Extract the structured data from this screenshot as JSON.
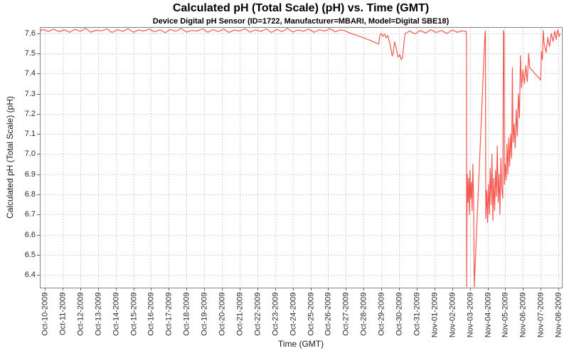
{
  "chart_data": {
    "type": "line",
    "title": "Calculated pH (Total Scale) (pH) vs. Time (GMT)",
    "subtitle": "Device Digital pH Sensor (ID=1722, Manufacturer=MBARI, Model=Digital SBE18)",
    "xlabel": "Time (GMT)",
    "ylabel": "Calculated pH (Total Scale) (pH)",
    "grid": true,
    "legend": "none",
    "ylim": [
      6.33,
      7.63
    ],
    "x_range_days": [
      -0.28,
      29.2
    ],
    "y_tick_labels": [
      "7.6",
      "7.5",
      "7.4",
      "7.3",
      "7.2",
      "7.1",
      "7.0",
      "6.9",
      "6.8",
      "6.7",
      "6.6",
      "6.5",
      "6.4"
    ],
    "x_tick_labels": [
      "Oct-10-2009",
      "Oct-11-2009",
      "Oct-12-2009",
      "Oct-13-2009",
      "Oct-14-2009",
      "Oct-15-2009",
      "Oct-16-2009",
      "Oct-17-2009",
      "Oct-18-2009",
      "Oct-19-2009",
      "Oct-20-2009",
      "Oct-21-2009",
      "Oct-22-2009",
      "Oct-23-2009",
      "Oct-24-2009",
      "Oct-25-2009",
      "Oct-26-2009",
      "Oct-27-2009",
      "Oct-28-2009",
      "Oct-29-2009",
      "Oct-30-2009",
      "Oct-31-2009",
      "Nov-01-2009",
      "Nov-02-2009",
      "Nov-03-2009",
      "Nov-04-2009",
      "Nov-05-2009",
      "Nov-06-2009",
      "Nov-07-2009",
      "Nov-08-2009"
    ],
    "colors": {
      "series_line": "#f4574f",
      "gridline": "#d4d4d4",
      "plot_border": "#848484",
      "tick_mark": "#666666",
      "text": "#2a2a2a"
    },
    "series": [
      {
        "name": "Calculated pH (Total Scale)",
        "points_day_ph": [
          [
            -0.28,
            7.612
          ],
          [
            -0.1,
            7.62
          ],
          [
            0.2,
            7.61
          ],
          [
            0.5,
            7.622
          ],
          [
            0.8,
            7.609
          ],
          [
            1.1,
            7.618
          ],
          [
            1.4,
            7.606
          ],
          [
            1.7,
            7.621
          ],
          [
            2,
            7.611
          ],
          [
            2.3,
            7.625
          ],
          [
            2.6,
            7.607
          ],
          [
            2.9,
            7.616
          ],
          [
            3.2,
            7.613
          ],
          [
            3.5,
            7.623
          ],
          [
            3.8,
            7.605
          ],
          [
            4.1,
            7.619
          ],
          [
            4.4,
            7.61
          ],
          [
            4.7,
            7.624
          ],
          [
            5,
            7.606
          ],
          [
            5.3,
            7.617
          ],
          [
            5.6,
            7.612
          ],
          [
            5.9,
            7.622
          ],
          [
            6.2,
            7.608
          ],
          [
            6.5,
            7.618
          ],
          [
            6.8,
            7.604
          ],
          [
            7.1,
            7.62
          ],
          [
            7.4,
            7.611
          ],
          [
            7.7,
            7.625
          ],
          [
            8,
            7.607
          ],
          [
            8.3,
            7.615
          ],
          [
            8.6,
            7.612
          ],
          [
            8.9,
            7.623
          ],
          [
            9.2,
            7.606
          ],
          [
            9.5,
            7.619
          ],
          [
            9.8,
            7.609
          ],
          [
            10.1,
            7.622
          ],
          [
            10.4,
            7.605
          ],
          [
            10.7,
            7.617
          ],
          [
            11,
            7.612
          ],
          [
            11.3,
            7.624
          ],
          [
            11.6,
            7.607
          ],
          [
            11.9,
            7.618
          ],
          [
            12.2,
            7.61
          ],
          [
            12.5,
            7.623
          ],
          [
            12.8,
            7.605
          ],
          [
            13.1,
            7.62
          ],
          [
            13.4,
            7.609
          ],
          [
            13.7,
            7.625
          ],
          [
            14,
            7.607
          ],
          [
            14.3,
            7.618
          ],
          [
            14.6,
            7.611
          ],
          [
            14.9,
            7.622
          ],
          [
            15.2,
            7.606
          ],
          [
            15.5,
            7.619
          ],
          [
            15.8,
            7.612
          ],
          [
            16.1,
            7.624
          ],
          [
            16.4,
            7.608
          ],
          [
            16.7,
            7.618
          ],
          [
            16.9,
            7.615
          ],
          [
            17.2,
            7.603
          ],
          [
            17.8,
            7.585
          ],
          [
            18.4,
            7.565
          ],
          [
            18.85,
            7.547
          ],
          [
            18.92,
            7.592
          ],
          [
            19,
            7.6
          ],
          [
            19.08,
            7.585
          ],
          [
            19.18,
            7.597
          ],
          [
            19.28,
            7.578
          ],
          [
            19.36,
            7.59
          ],
          [
            19.5,
            7.545
          ],
          [
            19.62,
            7.487
          ],
          [
            19.68,
            7.51
          ],
          [
            19.75,
            7.558
          ],
          [
            19.82,
            7.535
          ],
          [
            19.95,
            7.482
          ],
          [
            20.05,
            7.495
          ],
          [
            20.12,
            7.47
          ],
          [
            20.2,
            7.478
          ],
          [
            20.28,
            7.555
          ],
          [
            20.35,
            7.6
          ],
          [
            20.6,
            7.612
          ],
          [
            20.9,
            7.598
          ],
          [
            21.2,
            7.615
          ],
          [
            21.5,
            7.602
          ],
          [
            21.8,
            7.618
          ],
          [
            22.1,
            7.605
          ],
          [
            22.4,
            7.615
          ],
          [
            22.7,
            7.6
          ],
          [
            23,
            7.617
          ],
          [
            23.3,
            7.606
          ],
          [
            23.55,
            7.613
          ],
          [
            23.75,
            7.61
          ],
          [
            23.79,
            7.612
          ],
          [
            23.81,
            7.57
          ],
          [
            23.82,
            6.34
          ],
          [
            23.85,
            6.9
          ],
          [
            23.89,
            6.76
          ],
          [
            23.93,
            6.88
          ],
          [
            23.97,
            6.7
          ],
          [
            24.01,
            6.92
          ],
          [
            24.05,
            6.78
          ],
          [
            24.09,
            6.86
          ],
          [
            24.13,
            6.72
          ],
          [
            24.17,
            6.95
          ],
          [
            24.21,
            6.8
          ],
          [
            24.25,
            6.34
          ],
          [
            24.85,
            7.595
          ],
          [
            24.88,
            7.612
          ],
          [
            24.9,
            6.68
          ],
          [
            24.95,
            6.82
          ],
          [
            25,
            6.66
          ],
          [
            25.05,
            6.85
          ],
          [
            25.1,
            6.7
          ],
          [
            25.15,
            6.93
          ],
          [
            25.2,
            6.75
          ],
          [
            25.25,
            7.0
          ],
          [
            25.3,
            6.67
          ],
          [
            25.35,
            6.88
          ],
          [
            25.4,
            6.72
          ],
          [
            25.45,
            6.92
          ],
          [
            25.5,
            6.79
          ],
          [
            25.55,
            7.04
          ],
          [
            25.6,
            6.76
          ],
          [
            25.65,
            6.9
          ],
          [
            25.7,
            6.7
          ],
          [
            25.75,
            6.98
          ],
          [
            25.8,
            6.83
          ],
          [
            25.86,
            6.78
          ],
          [
            25.9,
            7.615
          ],
          [
            25.93,
            7.6
          ],
          [
            25.95,
            6.85
          ],
          [
            26,
            6.95
          ],
          [
            26.05,
            6.87
          ],
          [
            26.1,
            7.05
          ],
          [
            26.15,
            6.9
          ],
          [
            26.2,
            7.08
          ],
          [
            26.25,
            6.94
          ],
          [
            26.3,
            7.1
          ],
          [
            26.36,
            6.98
          ],
          [
            26.4,
            7.43
          ],
          [
            26.44,
            7.06
          ],
          [
            26.5,
            7.15
          ],
          [
            26.56,
            7.03
          ],
          [
            26.62,
            7.22
          ],
          [
            26.68,
            7.09
          ],
          [
            26.74,
            7.3
          ],
          [
            26.8,
            7.18
          ],
          [
            26.86,
            7.49
          ],
          [
            26.92,
            7.33
          ],
          [
            27,
            7.42
          ],
          [
            27.08,
            7.35
          ],
          [
            27.16,
            7.44
          ],
          [
            27.24,
            7.36
          ],
          [
            27.32,
            7.5
          ],
          [
            27.38,
            7.43
          ],
          [
            28,
            7.368
          ],
          [
            28.04,
            7.51
          ],
          [
            28.1,
            7.47
          ],
          [
            28.14,
            7.615
          ],
          [
            28.2,
            7.545
          ],
          [
            28.3,
            7.505
          ],
          [
            28.4,
            7.58
          ],
          [
            28.5,
            7.535
          ],
          [
            28.6,
            7.6
          ],
          [
            28.7,
            7.56
          ],
          [
            28.8,
            7.612
          ],
          [
            28.88,
            7.57
          ],
          [
            28.96,
            7.618
          ],
          [
            29.04,
            7.585
          ],
          [
            29.1,
            7.6
          ]
        ]
      }
    ]
  }
}
